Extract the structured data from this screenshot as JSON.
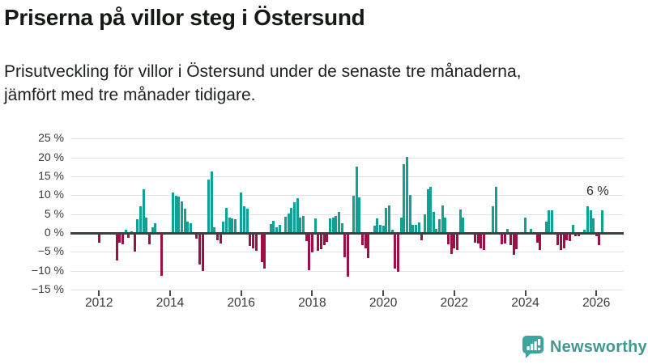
{
  "header": {
    "title": "Priserna på villor steg i Östersund",
    "subtitle": "Prisutveckling för villor i Östersund under de senaste tre månaderna,\njämfört med tre månader tidigare."
  },
  "footer": {
    "brand": "Newsworthy"
  },
  "chart_data": {
    "type": "bar",
    "title": "Priserna på villor steg i Östersund",
    "unit": "%",
    "frequency": "monthly",
    "start": "2012-01",
    "end": "2026-03",
    "ylim": [
      -15,
      25
    ],
    "grid": "horizontal",
    "y_ticks": [
      "25 %",
      "20 %",
      "15 %",
      "10 %",
      "5 %",
      "0 %",
      "−5 %",
      "−10 %",
      "−15 %"
    ],
    "y_tick_values": [
      25,
      20,
      15,
      10,
      5,
      0,
      -5,
      -10,
      -15
    ],
    "x_ticks": [
      "2012",
      "2014",
      "2016",
      "2018",
      "2020",
      "2022",
      "2024",
      "2026"
    ],
    "x_tick_years": [
      2012,
      2014,
      2016,
      2018,
      2020,
      2022,
      2024,
      2026
    ],
    "annotation_label": "6 %",
    "annotation_value": 6,
    "colors": {
      "positive": "#0fa194",
      "negative": "#9c1047",
      "zero_line": "#3c423f",
      "grid": "#e3e3e3"
    },
    "values": [
      -2.6,
      0,
      0,
      0,
      0,
      0,
      -7.2,
      -2.6,
      -3.0,
      0.8,
      -1.3,
      0.5,
      -4.9,
      3.7,
      7.1,
      11.5,
      4.0,
      -2.9,
      1.6,
      2.6,
      0,
      -11.3,
      0,
      0,
      0,
      10.7,
      9.9,
      9.6,
      8.3,
      6.5,
      3.0,
      2.6,
      0,
      -1.4,
      -8.4,
      -10.1,
      0,
      14.1,
      16.3,
      1.5,
      -1.9,
      -2.8,
      3.1,
      6.6,
      4.1,
      3.9,
      3.6,
      0,
      10.8,
      7.0,
      6.4,
      -3.5,
      -4.0,
      -4.6,
      0,
      -7.6,
      -9.4,
      0,
      2.4,
      3.2,
      1.6,
      2.2,
      0,
      4.3,
      5.2,
      6.6,
      8.1,
      9.3,
      4.1,
      4.6,
      -2.1,
      -9.8,
      -5.1,
      3.8,
      -4.8,
      -4.2,
      -3.2,
      -2.3,
      3.8,
      4.1,
      4.5,
      5.6,
      2.5,
      -6.3,
      -11.6,
      0,
      9.9,
      17.6,
      9.5,
      -3.2,
      -4.0,
      -6.6,
      0,
      2.0,
      3.9,
      2.1,
      1.9,
      6.7,
      7.3,
      0.9,
      -9.3,
      -10.3,
      4.0,
      18.1,
      20.1,
      10.1,
      2.1,
      2.1,
      2.8,
      -1.9,
      4.9,
      11.5,
      12.3,
      5.6,
      1.1,
      3.7,
      7.3,
      4.0,
      -3.0,
      -5.6,
      -4.1,
      -4.4,
      6.2,
      4.1,
      0,
      0,
      0,
      -2.6,
      -2.8,
      -4.0,
      -4.5,
      0,
      0,
      7.0,
      12.2,
      0,
      -2.9,
      -2.7,
      1.1,
      -3.1,
      -5.8,
      -4.2,
      0,
      0,
      4.1,
      0,
      1.1,
      0,
      -2.6,
      -4.4,
      0,
      3.1,
      5.9,
      5.9,
      0,
      -3.3,
      -4.4,
      -4.0,
      -1.9,
      -2.2,
      2.2,
      -0.8,
      -0.9,
      -0.4,
      0.8,
      7.1,
      6.0,
      3.9,
      -0.8,
      -3.2,
      6.0
    ]
  }
}
